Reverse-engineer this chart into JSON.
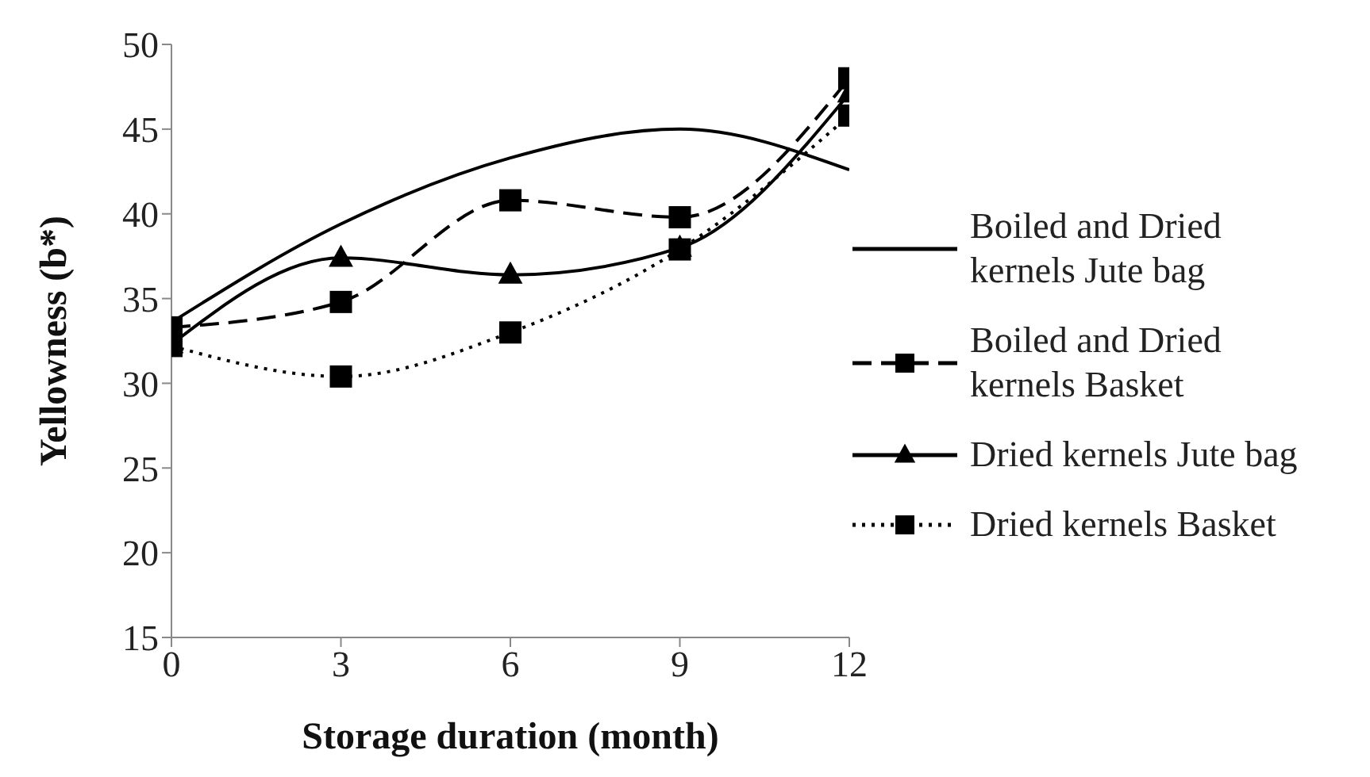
{
  "chart_data": {
    "type": "line",
    "xlabel": "Storage duration (month)",
    "ylabel": "Yellowness (b*)",
    "x": [
      0,
      3,
      6,
      9,
      12
    ],
    "xlim": [
      0,
      12
    ],
    "xticks": [
      0,
      3,
      6,
      9,
      12
    ],
    "ylim": [
      15,
      50
    ],
    "yticks": [
      15,
      20,
      25,
      30,
      35,
      40,
      45,
      50
    ],
    "grid": false,
    "legend": "right",
    "series": [
      {
        "name": "Boiled and Dried kernels Jute bag",
        "color": "#000000",
        "values": [
          33.6,
          39.4,
          43.3,
          45.0,
          42.6
        ],
        "marker": "none",
        "line_style": "solid"
      },
      {
        "name": "Boiled and Dried kernels Basket",
        "color": "#000000",
        "values": [
          33.3,
          34.8,
          40.8,
          39.8,
          48.0
        ],
        "marker": "square",
        "line_style": "dashed"
      },
      {
        "name": "Dried kernels Jute bag",
        "color": "#000000",
        "values": [
          32.3,
          37.4,
          36.4,
          38.0,
          47.1
        ],
        "marker": "triangle",
        "line_style": "solid"
      },
      {
        "name": "Dried kernels Basket",
        "color": "#000000",
        "values": [
          32.2,
          30.4,
          33.0,
          37.9,
          45.8
        ],
        "marker": "square",
        "line_style": "dotted"
      }
    ]
  }
}
